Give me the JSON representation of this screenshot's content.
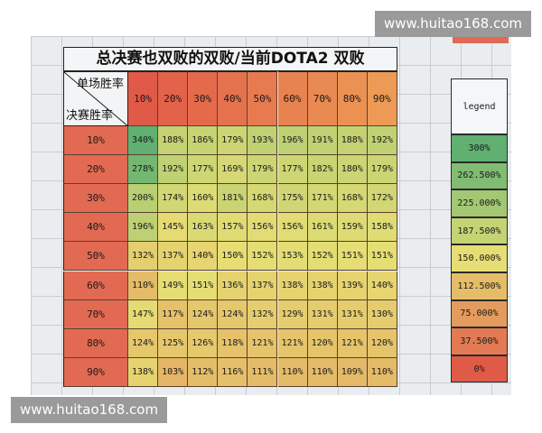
{
  "watermark": {
    "top": "www.huitao168.com",
    "bottom": "www.huitao168.com"
  },
  "title": "总决赛也双败的双败/当前DOTA2 双败",
  "axis": {
    "column_label": "单场胜率",
    "row_label": "决赛胜率"
  },
  "columns": [
    "10%",
    "20%",
    "30%",
    "40%",
    "50%",
    "60%",
    "70%",
    "80%",
    "90%"
  ],
  "rows": [
    {
      "label": "10%",
      "values": [
        "340%",
        "188%",
        "186%",
        "179%",
        "193%",
        "196%",
        "191%",
        "188%",
        "192%"
      ]
    },
    {
      "label": "20%",
      "values": [
        "278%",
        "192%",
        "177%",
        "169%",
        "179%",
        "177%",
        "182%",
        "180%",
        "179%"
      ]
    },
    {
      "label": "30%",
      "values": [
        "200%",
        "174%",
        "160%",
        "181%",
        "168%",
        "175%",
        "171%",
        "168%",
        "172%"
      ]
    },
    {
      "label": "40%",
      "values": [
        "196%",
        "145%",
        "163%",
        "157%",
        "156%",
        "156%",
        "161%",
        "159%",
        "158%"
      ]
    },
    {
      "label": "50%",
      "values": [
        "132%",
        "137%",
        "140%",
        "150%",
        "152%",
        "153%",
        "152%",
        "151%",
        "151%"
      ]
    },
    {
      "label": "60%",
      "values": [
        "110%",
        "149%",
        "151%",
        "136%",
        "137%",
        "138%",
        "138%",
        "139%",
        "140%"
      ]
    },
    {
      "label": "70%",
      "values": [
        "147%",
        "117%",
        "124%",
        "124%",
        "132%",
        "129%",
        "131%",
        "131%",
        "130%"
      ]
    },
    {
      "label": "80%",
      "values": [
        "124%",
        "125%",
        "126%",
        "118%",
        "121%",
        "121%",
        "120%",
        "121%",
        "120%"
      ]
    },
    {
      "label": "90%",
      "values": [
        "138%",
        "103%",
        "112%",
        "116%",
        "111%",
        "110%",
        "110%",
        "109%",
        "110%"
      ]
    }
  ],
  "legend": {
    "title": "legend",
    "items": [
      "300%",
      "262.500%",
      "225.000%",
      "187.500%",
      "150.000%",
      "112.500%",
      "75.000%",
      "37.500%",
      "0%"
    ]
  },
  "colors": {
    "header_red": "#e2644e",
    "scale_high": "#5fb071",
    "scale_mid": "#e6de74",
    "scale_low": "#e05a48"
  }
}
